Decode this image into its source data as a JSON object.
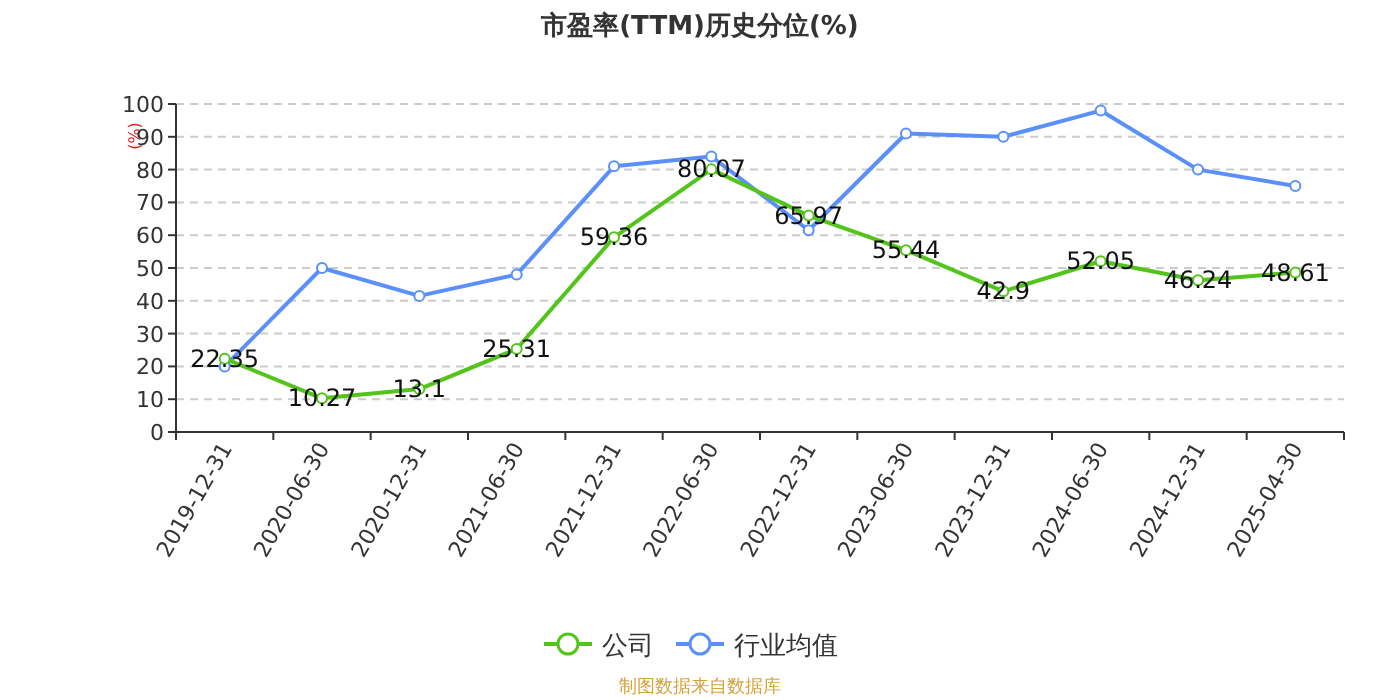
{
  "chart_data": {
    "type": "line",
    "title": "市盈率(TTM)历史分位(%)",
    "ylabel": "(%)",
    "categories": [
      "2019-12-31",
      "2020-06-30",
      "2020-12-31",
      "2021-06-30",
      "2021-12-31",
      "2022-06-30",
      "2022-12-31",
      "2023-06-30",
      "2023-12-31",
      "2024-06-30",
      "2024-12-31",
      "2025-04-30"
    ],
    "series": [
      {
        "name": "公司",
        "color": "#52c41a",
        "values": [
          22.35,
          10.27,
          13.1,
          25.31,
          59.36,
          80.07,
          65.97,
          55.44,
          42.9,
          52.05,
          46.24,
          48.61
        ],
        "data_labels": true
      },
      {
        "name": "行业均值",
        "color": "#5b8ff9",
        "values": [
          20,
          50,
          41.5,
          48,
          81,
          84,
          61.5,
          91,
          90,
          98,
          80,
          75
        ]
      }
    ],
    "ylim": [
      0,
      100
    ],
    "yticks": [
      0,
      10,
      20,
      30,
      40,
      50,
      60,
      70,
      80,
      90,
      100
    ],
    "grid": "y",
    "legend": "bottom",
    "marker": "circle",
    "annotations": [
      "制图数据来自数据库"
    ]
  }
}
